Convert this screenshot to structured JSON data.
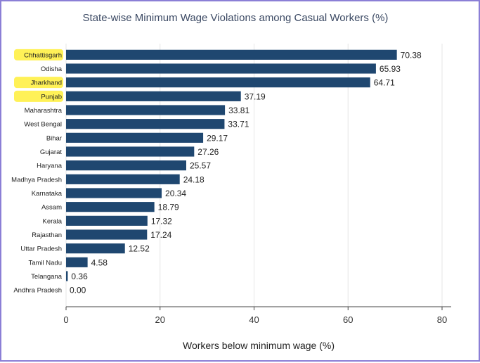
{
  "chart_data": {
    "type": "bar",
    "orientation": "horizontal",
    "title": "State-wise Minimum Wage Violations among Casual Workers (%)",
    "xlabel": "Workers below minimum wage (%)",
    "ylabel": "",
    "xlim": [
      0,
      80
    ],
    "xticks": [
      0,
      20,
      40,
      60,
      80
    ],
    "grid": true,
    "bar_color": "#1f4770",
    "highlight_color": "#ffef3a",
    "categories": [
      "Chhattisgarh",
      "Odisha",
      "Jharkhand",
      "Punjab",
      "Maharashtra",
      "West Bengal",
      "Bihar",
      "Gujarat",
      "Haryana",
      "Madhya Pradesh",
      "Karnataka",
      "Assam",
      "Kerala",
      "Rajasthan",
      "Uttar Pradesh",
      "Tamil Nadu",
      "Telangana",
      "Andhra Pradesh"
    ],
    "values": [
      70.38,
      65.93,
      64.71,
      37.19,
      33.81,
      33.71,
      29.17,
      27.26,
      25.57,
      24.18,
      20.34,
      18.79,
      17.32,
      17.24,
      12.52,
      4.58,
      0.36,
      0.0
    ],
    "value_labels": [
      "70.38",
      "65.93",
      "64.71",
      "37.19",
      "33.81",
      "33.71",
      "29.17",
      "27.26",
      "25.57",
      "24.18",
      "20.34",
      "18.79",
      "17.32",
      "17.24",
      "12.52",
      "4.58",
      "0.36",
      "0.00"
    ],
    "highlighted": [
      "Chhattisgarh",
      "Jharkhand",
      "Punjab"
    ]
  }
}
